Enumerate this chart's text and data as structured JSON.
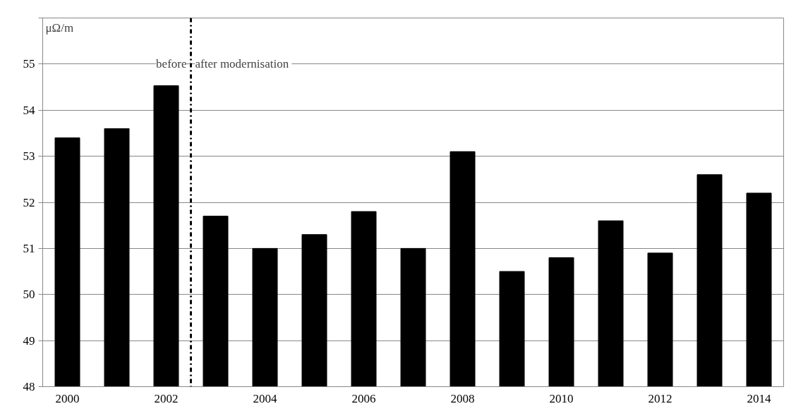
{
  "chart_data": {
    "type": "bar",
    "ylabel": "μΩ/m",
    "x": [
      2000,
      2001,
      2002,
      2003,
      2004,
      2005,
      2006,
      2007,
      2008,
      2009,
      2010,
      2011,
      2012,
      2013,
      2014
    ],
    "values": [
      53.4,
      53.6,
      54.53,
      51.7,
      51.0,
      51.3,
      51.8,
      51.0,
      53.1,
      50.5,
      50.8,
      51.6,
      50.9,
      52.6,
      52.2
    ],
    "color": "#000000",
    "xlim": [
      1999.5,
      2014.5
    ],
    "xticks": [
      2000,
      2002,
      2004,
      2006,
      2008,
      2010,
      2012,
      2014
    ],
    "ylim": [
      48,
      56
    ],
    "yticks": [
      48,
      49,
      50,
      51,
      52,
      53,
      54,
      55,
      {
        "value": 56,
        "label": null
      }
    ],
    "grid": "y",
    "ref_lines": [
      {
        "axis": "x",
        "value": 2002.5,
        "label": null,
        "color": "#000000",
        "line_style": "dashdot"
      }
    ],
    "annotations": [
      {
        "text": "before",
        "x": 2002.5,
        "y": 55
      },
      {
        "text": "after  modernisation",
        "x": 2002.5,
        "y": 55
      }
    ]
  }
}
